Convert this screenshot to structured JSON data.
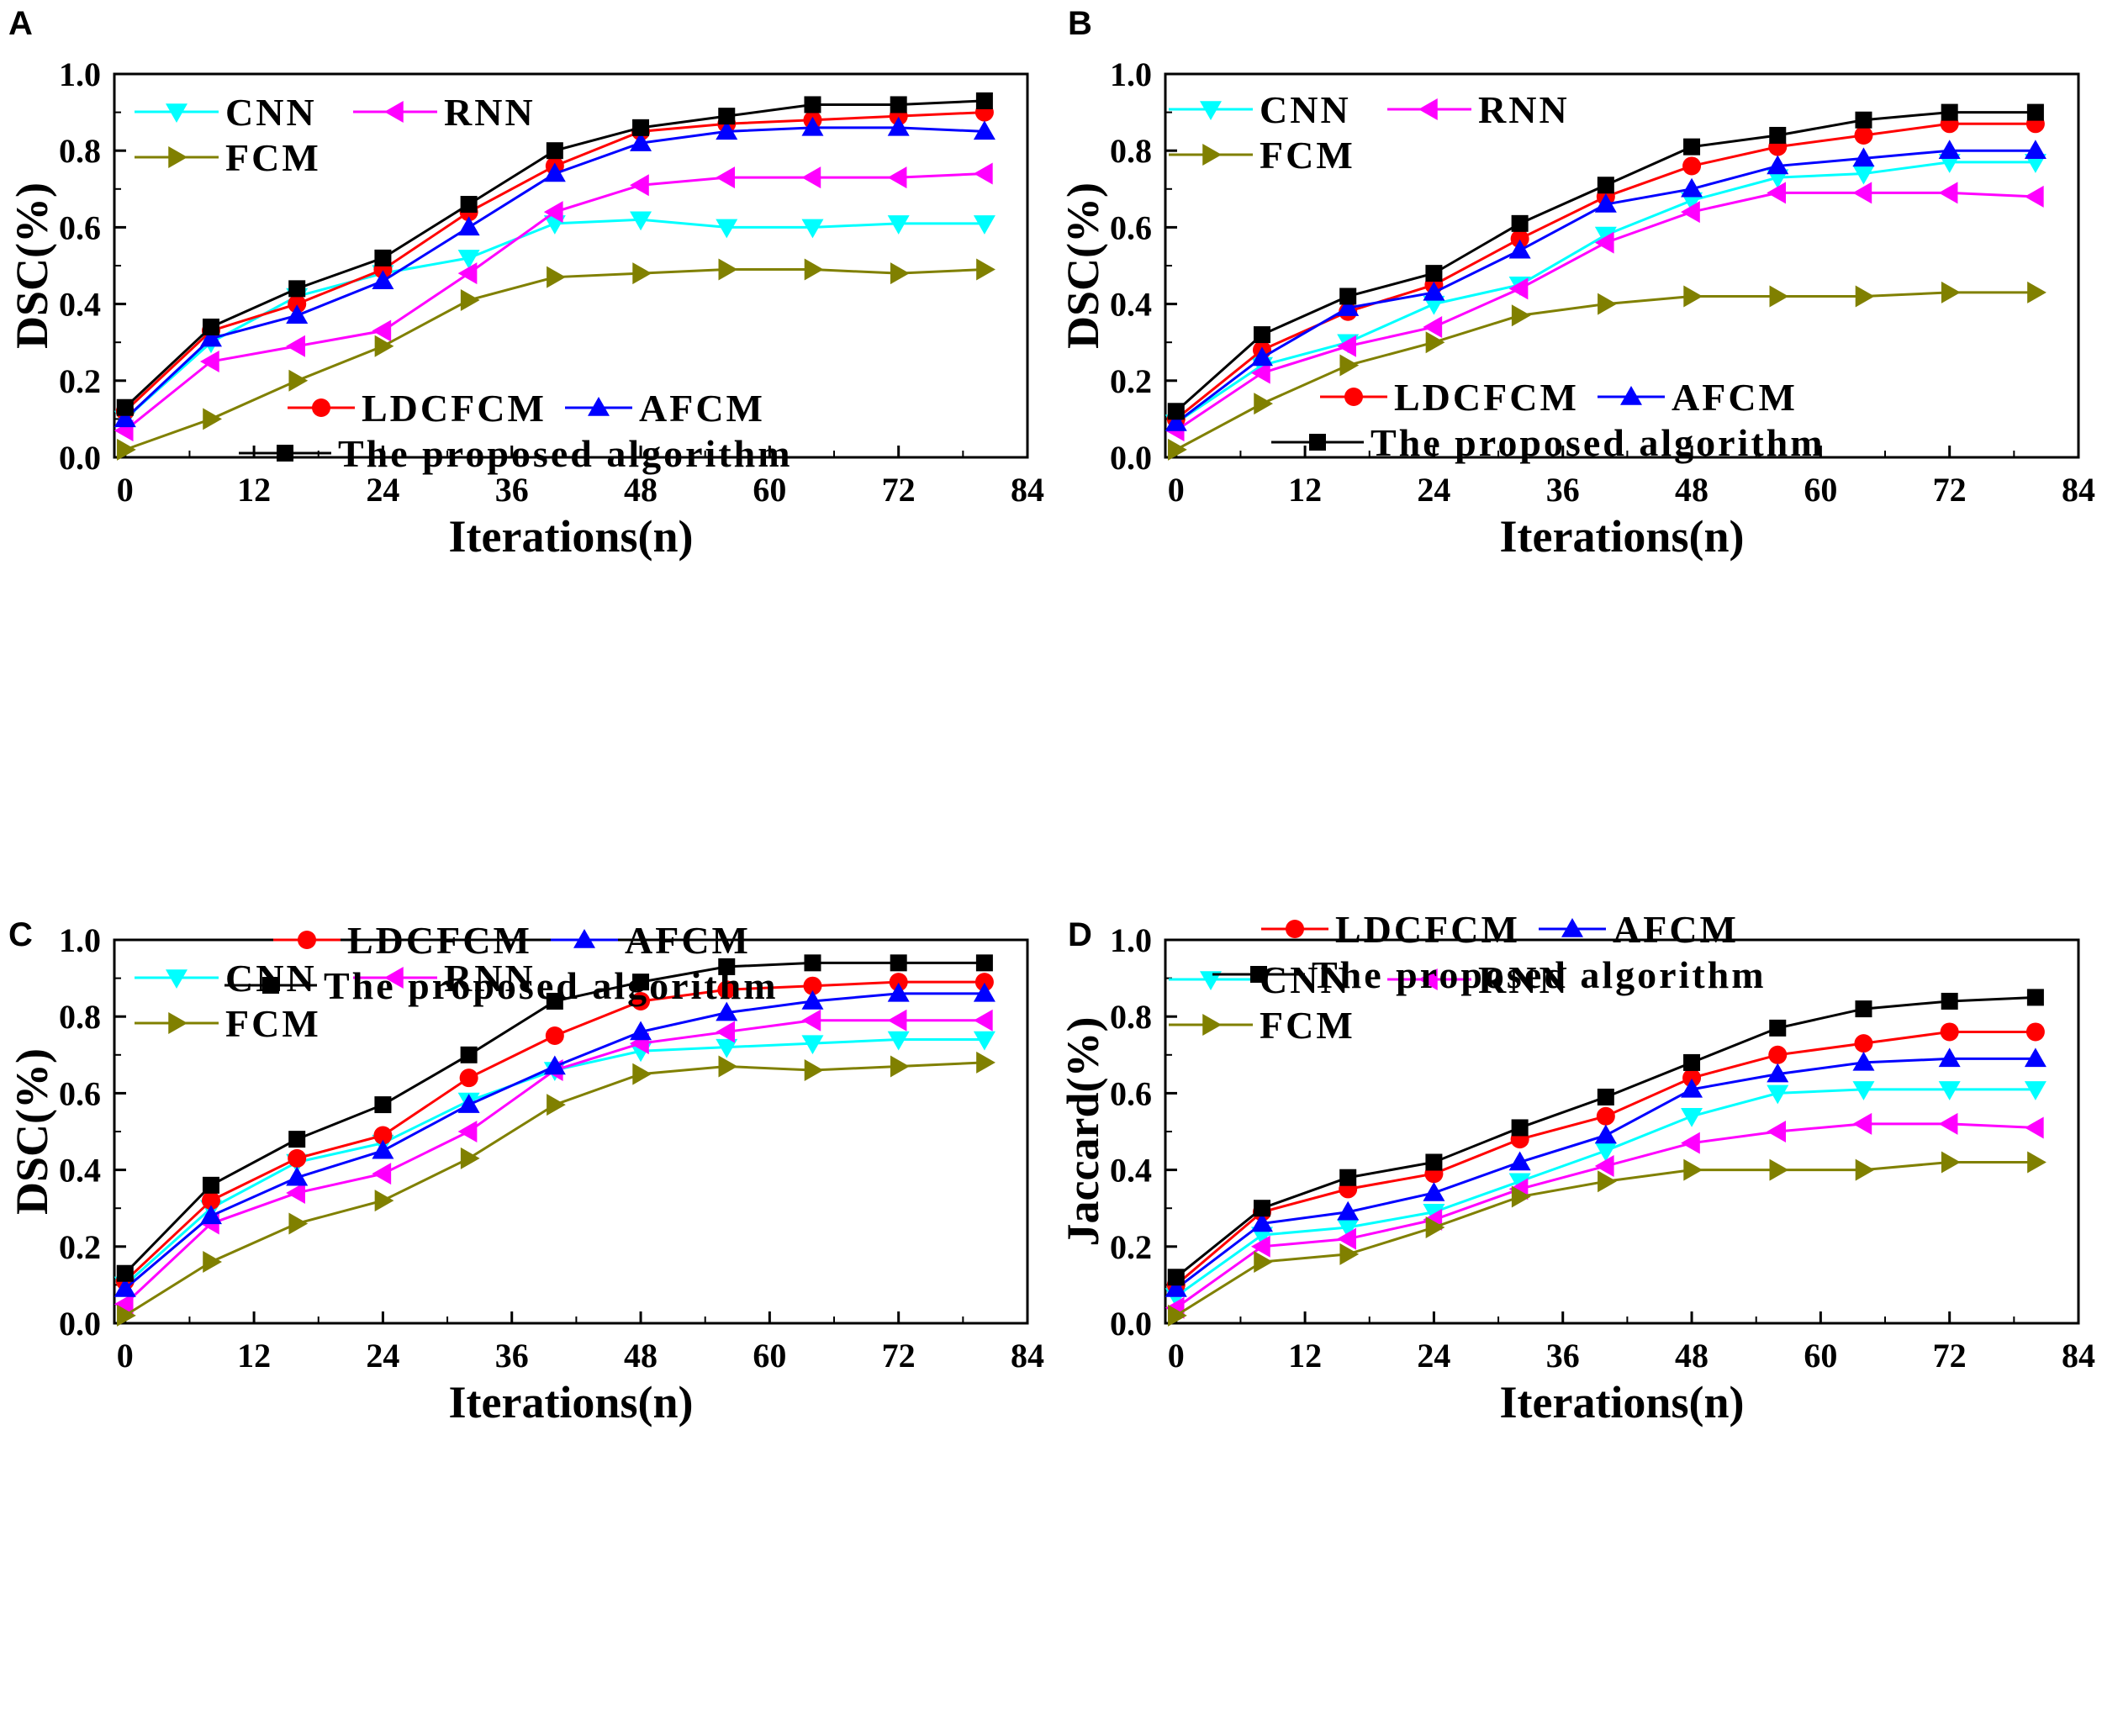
{
  "figure": {
    "colors": {
      "CNN": "#00ffff",
      "RNN": "#ff00ff",
      "FCM": "#808000",
      "LDCFCM": "#ff0000",
      "AFCM": "#0000ff",
      "proposed": "#000000"
    },
    "legend_labels": {
      "cnn": "CNN",
      "rnn": "RNN",
      "fcm": "FCM",
      "ldcfcm": "LDCFCM",
      "afcm": "AFCM",
      "proposed": "The proposed algorithm"
    }
  },
  "chart_data": [
    {
      "panel": "A",
      "type": "line",
      "xlabel": "Iterations(n)",
      "ylabel": "DSC(%)",
      "xlim": [
        -1,
        84
      ],
      "ylim": [
        0,
        1.0
      ],
      "xticks": [
        "0",
        "12",
        "24",
        "36",
        "48",
        "60",
        "72",
        "84"
      ],
      "yticks": [
        "0.0",
        "0.2",
        "0.4",
        "0.6",
        "0.8",
        "1.0"
      ],
      "x": [
        0,
        8,
        16,
        24,
        32,
        40,
        48,
        56,
        64,
        72,
        80
      ],
      "series": [
        {
          "name": "CNN",
          "key": "CNN",
          "marker": "tri-down",
          "values": [
            0.1,
            0.3,
            0.42,
            0.48,
            0.52,
            0.61,
            0.62,
            0.6,
            0.6,
            0.61,
            0.61
          ]
        },
        {
          "name": "RNN",
          "key": "RNN",
          "marker": "tri-left",
          "values": [
            0.07,
            0.25,
            0.29,
            0.33,
            0.48,
            0.64,
            0.71,
            0.73,
            0.73,
            0.73,
            0.74
          ]
        },
        {
          "name": "FCM",
          "key": "FCM",
          "marker": "tri-right",
          "values": [
            0.02,
            0.1,
            0.2,
            0.29,
            0.41,
            0.47,
            0.48,
            0.49,
            0.49,
            0.48,
            0.49
          ]
        },
        {
          "name": "LDCFCM",
          "key": "LDCFCM",
          "marker": "circle",
          "values": [
            0.12,
            0.33,
            0.4,
            0.49,
            0.64,
            0.76,
            0.85,
            0.87,
            0.88,
            0.89,
            0.9
          ]
        },
        {
          "name": "AFCM",
          "key": "AFCM",
          "marker": "tri-up",
          "values": [
            0.1,
            0.31,
            0.37,
            0.46,
            0.6,
            0.74,
            0.82,
            0.85,
            0.86,
            0.86,
            0.85
          ]
        },
        {
          "name": "The proposed algorithm",
          "key": "proposed",
          "marker": "square",
          "values": [
            0.13,
            0.34,
            0.44,
            0.52,
            0.66,
            0.8,
            0.86,
            0.89,
            0.92,
            0.92,
            0.93
          ]
        }
      ]
    },
    {
      "panel": "B",
      "type": "line",
      "xlabel": "Iterations(n)",
      "ylabel": "DSC(%)",
      "xlim": [
        -1,
        84
      ],
      "ylim": [
        0,
        1.0
      ],
      "xticks": [
        "0",
        "12",
        "24",
        "36",
        "48",
        "60",
        "72",
        "84"
      ],
      "yticks": [
        "0.0",
        "0.2",
        "0.4",
        "0.6",
        "0.8",
        "1.0"
      ],
      "x": [
        0,
        8,
        16,
        24,
        32,
        40,
        48,
        56,
        64,
        72,
        80
      ],
      "series": [
        {
          "name": "CNN",
          "key": "CNN",
          "marker": "tri-down",
          "values": [
            0.09,
            0.24,
            0.3,
            0.4,
            0.45,
            0.58,
            0.67,
            0.73,
            0.74,
            0.77,
            0.77
          ]
        },
        {
          "name": "RNN",
          "key": "RNN",
          "marker": "tri-left",
          "values": [
            0.07,
            0.22,
            0.29,
            0.34,
            0.44,
            0.56,
            0.64,
            0.69,
            0.69,
            0.69,
            0.68
          ]
        },
        {
          "name": "FCM",
          "key": "FCM",
          "marker": "tri-right",
          "values": [
            0.02,
            0.14,
            0.24,
            0.3,
            0.37,
            0.4,
            0.42,
            0.42,
            0.42,
            0.43,
            0.43
          ]
        },
        {
          "name": "LDCFCM",
          "key": "LDCFCM",
          "marker": "circle",
          "values": [
            0.1,
            0.28,
            0.38,
            0.45,
            0.57,
            0.68,
            0.76,
            0.81,
            0.84,
            0.87,
            0.87
          ]
        },
        {
          "name": "AFCM",
          "key": "AFCM",
          "marker": "tri-up",
          "values": [
            0.09,
            0.26,
            0.39,
            0.43,
            0.54,
            0.66,
            0.7,
            0.76,
            0.78,
            0.8,
            0.8
          ]
        },
        {
          "name": "The proposed algorithm",
          "key": "proposed",
          "marker": "square",
          "values": [
            0.12,
            0.32,
            0.42,
            0.48,
            0.61,
            0.71,
            0.81,
            0.84,
            0.88,
            0.9,
            0.9
          ]
        }
      ]
    },
    {
      "panel": "C",
      "type": "line",
      "xlabel": "Iterations(n)",
      "ylabel": "DSC(%)",
      "xlim": [
        -1,
        84
      ],
      "ylim": [
        0,
        1.0
      ],
      "xticks": [
        "0",
        "12",
        "24",
        "36",
        "48",
        "60",
        "72",
        "84"
      ],
      "yticks": [
        "0.0",
        "0.2",
        "0.4",
        "0.6",
        "0.8",
        "1.0"
      ],
      "x": [
        0,
        8,
        16,
        24,
        32,
        40,
        48,
        56,
        64,
        72,
        80
      ],
      "series": [
        {
          "name": "CNN",
          "key": "CNN",
          "marker": "tri-down",
          "values": [
            0.1,
            0.3,
            0.42,
            0.47,
            0.58,
            0.66,
            0.71,
            0.72,
            0.73,
            0.74,
            0.74
          ]
        },
        {
          "name": "RNN",
          "key": "RNN",
          "marker": "tri-left",
          "values": [
            0.05,
            0.26,
            0.34,
            0.39,
            0.5,
            0.66,
            0.73,
            0.76,
            0.79,
            0.79,
            0.79
          ]
        },
        {
          "name": "FCM",
          "key": "FCM",
          "marker": "tri-right",
          "values": [
            0.02,
            0.16,
            0.26,
            0.32,
            0.43,
            0.57,
            0.65,
            0.67,
            0.66,
            0.67,
            0.68
          ]
        },
        {
          "name": "LDCFCM",
          "key": "LDCFCM",
          "marker": "circle",
          "values": [
            0.11,
            0.32,
            0.43,
            0.49,
            0.64,
            0.75,
            0.84,
            0.87,
            0.88,
            0.89,
            0.89
          ]
        },
        {
          "name": "AFCM",
          "key": "AFCM",
          "marker": "tri-up",
          "values": [
            0.09,
            0.28,
            0.38,
            0.45,
            0.57,
            0.67,
            0.76,
            0.81,
            0.84,
            0.86,
            0.86
          ]
        },
        {
          "name": "The proposed algorithm",
          "key": "proposed",
          "marker": "square",
          "values": [
            0.13,
            0.36,
            0.48,
            0.57,
            0.7,
            0.84,
            0.89,
            0.93,
            0.94,
            0.94,
            0.94
          ]
        }
      ]
    },
    {
      "panel": "D",
      "type": "line",
      "xlabel": "Iterations(n)",
      "ylabel": "Jaccard(%)",
      "xlim": [
        -1,
        84
      ],
      "ylim": [
        0,
        1.0
      ],
      "xticks": [
        "0",
        "12",
        "24",
        "36",
        "48",
        "60",
        "72",
        "84"
      ],
      "yticks": [
        "0.0",
        "0.2",
        "0.4",
        "0.6",
        "0.8",
        "1.0"
      ],
      "x": [
        0,
        8,
        16,
        24,
        32,
        40,
        48,
        56,
        64,
        72,
        80
      ],
      "series": [
        {
          "name": "CNN",
          "key": "CNN",
          "marker": "tri-down",
          "values": [
            0.07,
            0.23,
            0.25,
            0.29,
            0.37,
            0.45,
            0.54,
            0.6,
            0.61,
            0.61,
            0.61
          ]
        },
        {
          "name": "RNN",
          "key": "RNN",
          "marker": "tri-left",
          "values": [
            0.04,
            0.2,
            0.22,
            0.27,
            0.35,
            0.41,
            0.47,
            0.5,
            0.52,
            0.52,
            0.51
          ]
        },
        {
          "name": "FCM",
          "key": "FCM",
          "marker": "tri-right",
          "values": [
            0.02,
            0.16,
            0.18,
            0.25,
            0.33,
            0.37,
            0.4,
            0.4,
            0.4,
            0.42,
            0.42
          ]
        },
        {
          "name": "LDCFCM",
          "key": "LDCFCM",
          "marker": "circle",
          "values": [
            0.1,
            0.29,
            0.35,
            0.39,
            0.48,
            0.54,
            0.64,
            0.7,
            0.73,
            0.76,
            0.76
          ]
        },
        {
          "name": "AFCM",
          "key": "AFCM",
          "marker": "tri-up",
          "values": [
            0.09,
            0.26,
            0.29,
            0.34,
            0.42,
            0.49,
            0.61,
            0.65,
            0.68,
            0.69,
            0.69
          ]
        },
        {
          "name": "The proposed algorithm",
          "key": "proposed",
          "marker": "square",
          "values": [
            0.12,
            0.3,
            0.38,
            0.42,
            0.51,
            0.59,
            0.68,
            0.77,
            0.82,
            0.84,
            0.85
          ]
        }
      ]
    }
  ]
}
